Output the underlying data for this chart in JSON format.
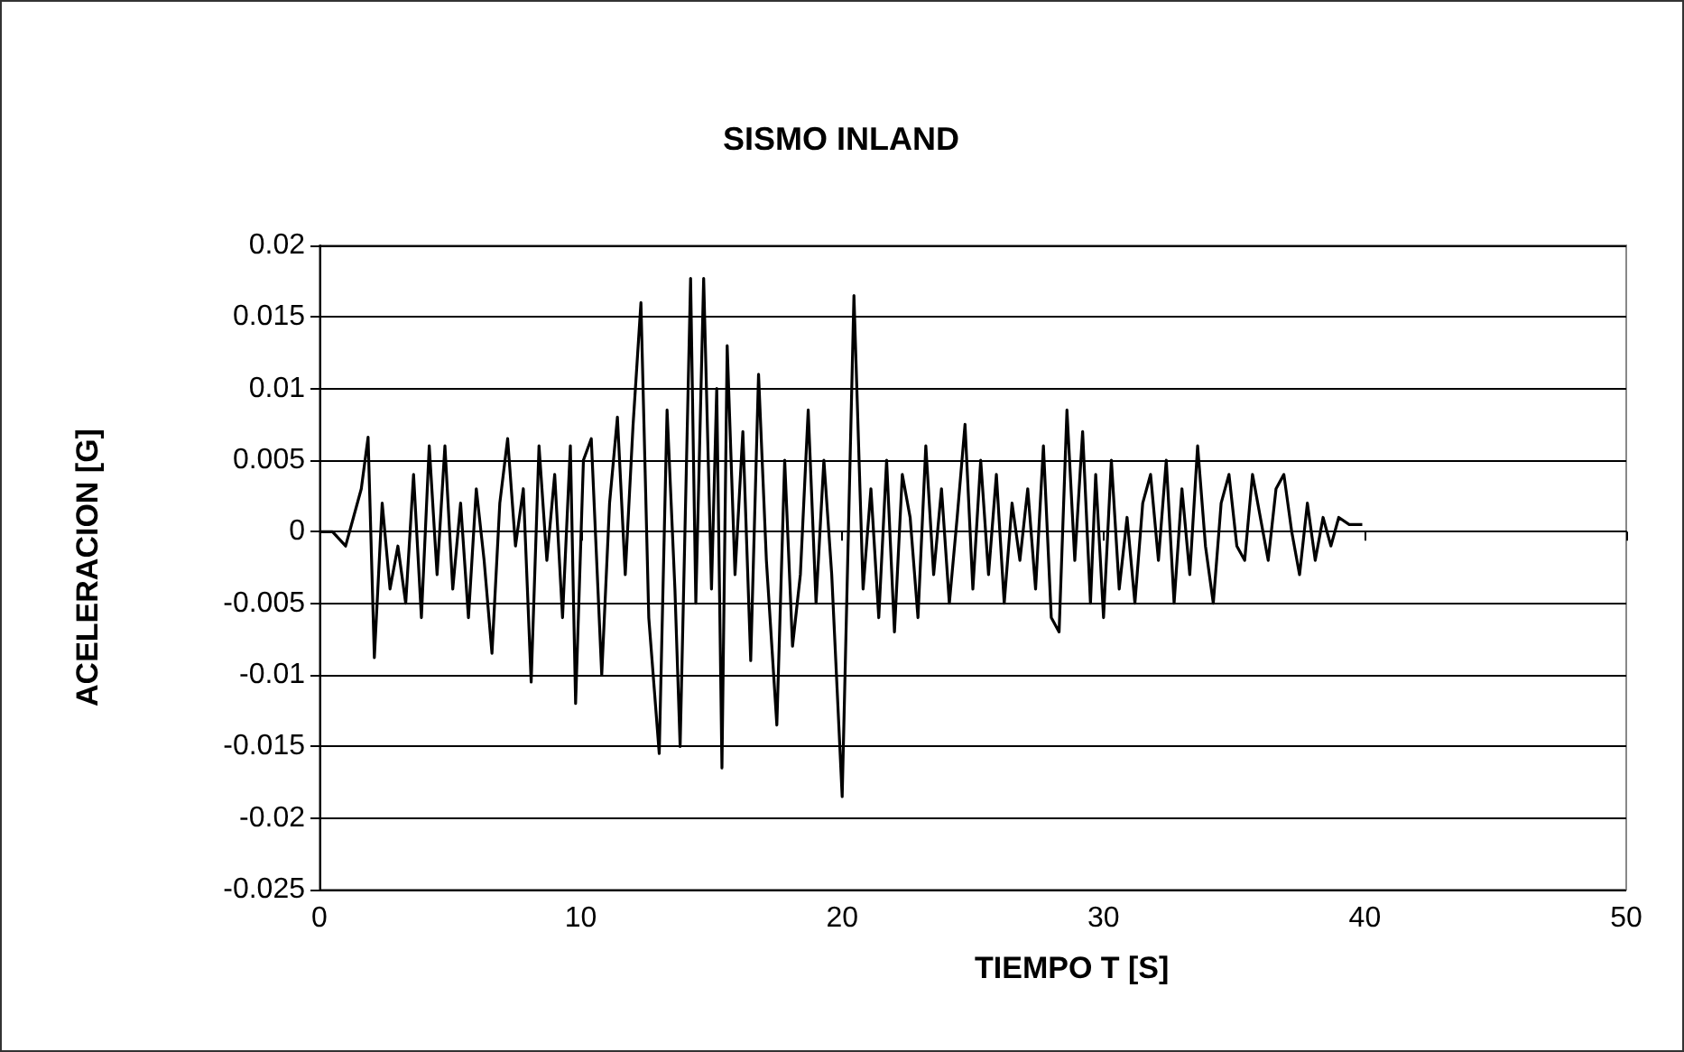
{
  "chart_data": {
    "type": "line",
    "title": "SISMO INLAND",
    "xlabel": "TIEMPO T [S]",
    "ylabel": "ACELERACION [G]",
    "xlim": [
      0,
      50
    ],
    "xticks": [
      0,
      10,
      20,
      30,
      40,
      50
    ],
    "ylim": [
      -0.025,
      0.02
    ],
    "yticks": [
      -0.025,
      -0.02,
      -0.015,
      -0.01,
      -0.005,
      0,
      0.005,
      0.01,
      0.015,
      0.02
    ],
    "grid": "y",
    "series": [
      {
        "color": "#000000",
        "x": [
          0,
          0.5,
          1,
          1.3,
          1.6,
          1.86,
          2.1,
          2.4,
          2.7,
          3.0,
          3.3,
          3.6,
          3.9,
          4.2,
          4.5,
          4.8,
          5.1,
          5.4,
          5.7,
          6.0,
          6.3,
          6.6,
          6.9,
          7.2,
          7.5,
          7.8,
          8.1,
          8.4,
          8.7,
          9.0,
          9.3,
          9.6,
          9.8,
          10.1,
          10.4,
          10.8,
          11.1,
          11.4,
          11.7,
          12.0,
          12.3,
          12.6,
          13.0,
          13.3,
          13.6,
          13.8,
          14.2,
          14.4,
          14.7,
          15.0,
          15.2,
          15.4,
          15.6,
          15.9,
          16.2,
          16.5,
          16.8,
          17.1,
          17.5,
          17.8,
          18.1,
          18.4,
          18.7,
          19.0,
          19.3,
          19.6,
          20.0,
          20.45,
          20.8,
          21.1,
          21.4,
          21.7,
          22.0,
          22.3,
          22.6,
          22.9,
          23.2,
          23.5,
          23.8,
          24.1,
          24.4,
          24.7,
          25.0,
          25.3,
          25.6,
          25.9,
          26.2,
          26.5,
          26.8,
          27.1,
          27.4,
          27.7,
          28.0,
          28.3,
          28.6,
          28.9,
          29.2,
          29.5,
          29.7,
          30.0,
          30.3,
          30.6,
          30.9,
          31.2,
          31.5,
          31.8,
          32.1,
          32.4,
          32.7,
          33.0,
          33.3,
          33.6,
          33.9,
          34.2,
          34.5,
          34.8,
          35.1,
          35.4,
          35.7,
          36.0,
          36.3,
          36.6,
          36.9,
          37.2,
          37.5,
          37.8,
          38.1,
          38.4,
          38.7,
          39.0,
          39.4,
          39.9
        ],
        "values": [
          0,
          0,
          -0.001,
          0.001,
          0.003,
          0.0066,
          -0.0088,
          0.002,
          -0.004,
          -0.001,
          -0.005,
          0.004,
          -0.006,
          0.006,
          -0.003,
          0.006,
          -0.004,
          0.002,
          -0.006,
          0.003,
          -0.002,
          -0.0085,
          0.002,
          0.0065,
          -0.001,
          0.003,
          -0.0105,
          0.006,
          -0.002,
          0.004,
          -0.006,
          0.006,
          -0.012,
          0.005,
          0.0065,
          -0.01,
          0.002,
          0.008,
          -0.003,
          0.0075,
          0.016,
          -0.006,
          -0.0155,
          0.0085,
          -0.004,
          -0.015,
          0.0177,
          -0.005,
          0.0177,
          -0.004,
          0.01,
          -0.0165,
          0.013,
          -0.003,
          0.007,
          -0.009,
          0.011,
          -0.002,
          -0.0135,
          0.005,
          -0.008,
          -0.003,
          0.0085,
          -0.005,
          0.005,
          -0.003,
          -0.0185,
          0.0165,
          -0.004,
          0.003,
          -0.006,
          0.005,
          -0.007,
          0.004,
          0.001,
          -0.006,
          0.006,
          -0.003,
          0.003,
          -0.005,
          0.001,
          0.0075,
          -0.004,
          0.005,
          -0.003,
          0.004,
          -0.005,
          0.002,
          -0.002,
          0.003,
          -0.004,
          0.006,
          -0.006,
          -0.007,
          0.0085,
          -0.002,
          0.007,
          -0.005,
          0.004,
          -0.006,
          0.005,
          -0.004,
          0.001,
          -0.005,
          0.002,
          0.004,
          -0.002,
          0.005,
          -0.005,
          0.003,
          -0.003,
          0.006,
          -0.001,
          -0.005,
          0.002,
          0.004,
          -0.001,
          -0.002,
          0.004,
          0.001,
          -0.002,
          0.003,
          0.004,
          0,
          -0.003,
          0.002,
          -0.002,
          0.001,
          -0.001,
          0.001,
          0.0005,
          0.0005
        ]
      }
    ]
  }
}
